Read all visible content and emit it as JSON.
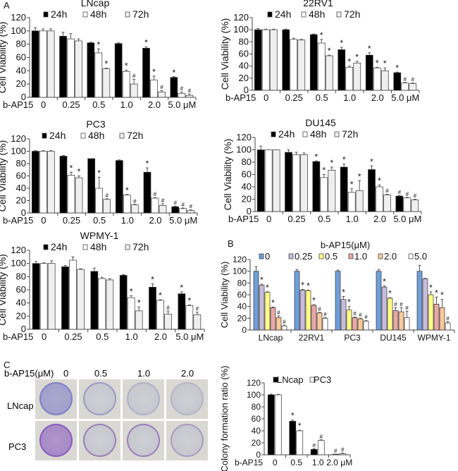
{
  "panel_labels": {
    "a": "A",
    "b": "B",
    "c": "C"
  },
  "colony_photos": {
    "header": "b-AP15(μM)",
    "columns": [
      "0",
      "0.5",
      "1.0",
      "2.0"
    ],
    "rows": [
      "LNcap",
      "PC3"
    ],
    "row_colors": {
      "LNcap": [
        "#7f80c8",
        "#9a9ac4",
        "#b0b0c8",
        "#b4b4c6"
      ],
      "PC3": [
        "#8a5cc0",
        "#9a80b8",
        "#9c7fbc",
        "#a89cc2"
      ]
    }
  },
  "chart_data": [
    {
      "type": "bar",
      "title": "LNcap",
      "xlabel": "b-AP15",
      "ylabel": "Cell Viability (%)",
      "ylim": [
        0,
        120
      ],
      "yticks": [
        "0",
        "20",
        "40",
        "60",
        "80",
        "100",
        "120"
      ],
      "categories": [
        "0",
        "0.25",
        "0.5",
        "1.0",
        "2.0",
        "5.0 μM"
      ],
      "series": [
        {
          "name": "24h",
          "color": "#000000",
          "values": [
            100,
            92,
            82,
            81,
            74,
            30
          ],
          "err": [
            5,
            6,
            1,
            1,
            2,
            1
          ],
          "marks": [
            "",
            "",
            "",
            "",
            "*",
            "*"
          ]
        },
        {
          "name": "48h",
          "color": "#ffffff",
          "values": [
            100,
            88,
            67,
            39,
            26,
            6
          ],
          "err": [
            3,
            8,
            6,
            2,
            6,
            2
          ],
          "marks": [
            "",
            "",
            "*",
            "*",
            "*",
            "#"
          ]
        },
        {
          "name": "72h",
          "color": "#efefef",
          "values": [
            100,
            85,
            43,
            20,
            8,
            3
          ],
          "err": [
            3,
            3,
            1,
            7,
            2,
            2
          ],
          "marks": [
            "",
            "",
            "*",
            "#",
            "#",
            "#"
          ]
        }
      ]
    },
    {
      "type": "bar",
      "title": "22RV1",
      "xlabel": "b-AP15",
      "ylabel": "Cell Viability (%)",
      "ylim": [
        0,
        120
      ],
      "yticks": [
        "0",
        "20",
        "40",
        "60",
        "80",
        "100",
        "120"
      ],
      "categories": [
        "0",
        "0.25",
        "0.5",
        "1.0",
        "2.0",
        "5.0 μM"
      ],
      "series": [
        {
          "name": "24h",
          "color": "#000000",
          "values": [
            100,
            100,
            92,
            67,
            58,
            29
          ],
          "err": [
            2,
            1,
            1,
            4,
            4,
            1
          ],
          "marks": [
            "",
            "",
            "",
            "*",
            "*",
            "*"
          ]
        },
        {
          "name": "48h",
          "color": "#ffffff",
          "values": [
            100,
            84,
            78,
            38,
            37,
            12
          ],
          "err": [
            1,
            2,
            6,
            2,
            1,
            1
          ],
          "marks": [
            "",
            "",
            "*",
            "*",
            "*",
            "#"
          ]
        },
        {
          "name": "72h",
          "color": "#efefef",
          "values": [
            100,
            83,
            57,
            45,
            32,
            11
          ],
          "err": [
            1,
            1,
            1,
            3,
            5,
            1
          ],
          "marks": [
            "",
            "",
            "*",
            "*",
            "*",
            "#"
          ]
        }
      ]
    },
    {
      "type": "bar",
      "title": "PC3",
      "xlabel": "b-AP15",
      "ylabel": "Cell Viability (%)",
      "ylim": [
        0,
        120
      ],
      "yticks": [
        "0",
        "20",
        "40",
        "60",
        "80",
        "100",
        "120"
      ],
      "categories": [
        "0",
        "0.25",
        "0.5",
        "1.0",
        "2.0",
        "5.0 μM"
      ],
      "series": [
        {
          "name": "24h",
          "color": "#000000",
          "values": [
            100,
            92,
            88,
            85,
            66,
            10
          ],
          "err": [
            1,
            1,
            0,
            1,
            7,
            1
          ],
          "marks": [
            "",
            "",
            "",
            "",
            "*",
            "#"
          ]
        },
        {
          "name": "48h",
          "color": "#ffffff",
          "values": [
            100,
            61,
            40,
            29,
            24,
            7
          ],
          "err": [
            1,
            5,
            18,
            1,
            1,
            1
          ],
          "marks": [
            "",
            "*",
            "*",
            "*",
            "#",
            "#"
          ]
        },
        {
          "name": "72h",
          "color": "#efefef",
          "values": [
            100,
            57,
            22,
            13,
            12,
            4
          ],
          "err": [
            1,
            3,
            1,
            1,
            3,
            1
          ],
          "marks": [
            "",
            "*",
            "#",
            "#",
            "#",
            "#"
          ]
        }
      ]
    },
    {
      "type": "bar",
      "title": "DU145",
      "xlabel": "b-AP15",
      "ylabel": "Cell Viability (%)",
      "ylim": [
        0,
        120
      ],
      "yticks": [
        "0",
        "20",
        "40",
        "60",
        "80",
        "100",
        "120"
      ],
      "categories": [
        "0",
        "0.25",
        "0.5",
        "1.0",
        "2.0",
        "5.0 μM"
      ],
      "series": [
        {
          "name": "24h",
          "color": "#000000",
          "values": [
            100,
            96,
            81,
            72,
            68,
            25
          ],
          "err": [
            6,
            4,
            1,
            5,
            6,
            1
          ],
          "marks": [
            "",
            "",
            "*",
            "*",
            "*",
            "#"
          ]
        },
        {
          "name": "48h",
          "color": "#ffffff",
          "values": [
            100,
            92,
            55,
            31,
            40,
            22
          ],
          "err": [
            0,
            4,
            5,
            6,
            3,
            1
          ],
          "marks": [
            "",
            "",
            "*",
            "*",
            "*",
            "#"
          ]
        },
        {
          "name": "72h",
          "color": "#efefef",
          "values": [
            100,
            92,
            67,
            34,
            27,
            19
          ],
          "err": [
            0,
            3,
            5,
            16,
            1,
            1
          ],
          "marks": [
            "",
            "",
            "*",
            "*",
            "#",
            "#"
          ]
        }
      ]
    },
    {
      "type": "bar",
      "title": "WPMY-1",
      "xlabel": "b-AP15",
      "ylabel": "Cell Viability (%)",
      "ylim": [
        0,
        120
      ],
      "yticks": [
        "0",
        "20",
        "40",
        "60",
        "80",
        "100",
        "120"
      ],
      "categories": [
        "0",
        "0.25",
        "0.5",
        "1.0",
        "2.0",
        "5.0 μM"
      ],
      "series": [
        {
          "name": "24h",
          "color": "#000000",
          "values": [
            100,
            95,
            88,
            82,
            64,
            54
          ],
          "err": [
            3,
            2,
            5,
            1,
            5,
            3
          ],
          "marks": [
            "",
            "",
            "",
            "",
            "*",
            "*"
          ]
        },
        {
          "name": "48h",
          "color": "#ffffff",
          "values": [
            100,
            105,
            77,
            48,
            44,
            36
          ],
          "err": [
            1,
            5,
            2,
            3,
            1,
            1
          ],
          "marks": [
            "",
            "",
            "",
            "*",
            "*",
            "*"
          ]
        },
        {
          "name": "72h",
          "color": "#efefef",
          "values": [
            100,
            91,
            75,
            28,
            23,
            22
          ],
          "err": [
            4,
            1,
            2,
            6,
            5,
            4
          ],
          "marks": [
            "",
            "",
            "",
            "*",
            "#",
            "#"
          ]
        }
      ]
    },
    {
      "type": "bar",
      "title": "b-AP15(μM)",
      "xlabel": "",
      "ylabel": "Cell Viability (%)",
      "ylim": [
        0,
        120
      ],
      "yticks": [
        "0",
        "20",
        "40",
        "60",
        "80",
        "100",
        "120"
      ],
      "categories": [
        "LNcap",
        "22RV1",
        "PC3",
        "DU145",
        "WPMY-1"
      ],
      "series": [
        {
          "name": "0",
          "color": "#6f9fd8",
          "values": [
            100,
            100,
            100,
            100,
            100
          ],
          "err": [
            8,
            3,
            2,
            3,
            10
          ],
          "marks": [
            "",
            "",
            "",
            "",
            ""
          ]
        },
        {
          "name": "0.25",
          "color": "#c8bcdc",
          "values": [
            76,
            68,
            52,
            73,
            87
          ],
          "err": [
            2,
            1,
            5,
            2,
            1
          ],
          "marks": [
            "*",
            "*",
            "*",
            "*",
            ""
          ]
        },
        {
          "name": "0.5",
          "color": "#ffff88",
          "values": [
            64,
            67,
            34,
            54,
            60
          ],
          "err": [
            1,
            1,
            6,
            1,
            5
          ],
          "marks": [
            "*",
            "*",
            "*",
            "*",
            "*"
          ]
        },
        {
          "name": "1.0",
          "color": "#e8a8a8",
          "values": [
            38,
            42,
            21,
            33,
            44
          ],
          "err": [
            1,
            1,
            1,
            5,
            12
          ],
          "marks": [
            "*",
            "*",
            "#",
            "#",
            "*"
          ]
        },
        {
          "name": "2.0",
          "color": "#f9c99c",
          "values": [
            21,
            29,
            19,
            31,
            38
          ],
          "err": [
            3,
            1,
            1,
            7,
            14
          ],
          "marks": [
            "#",
            "#",
            "#",
            "#",
            "*"
          ]
        },
        {
          "name": "5.0",
          "color": "#ffffff",
          "values": [
            7,
            20,
            15,
            21,
            12
          ],
          "err": [
            1,
            1,
            1,
            11,
            2
          ],
          "marks": [
            "#",
            "#",
            "#",
            "#",
            "#"
          ]
        }
      ]
    },
    {
      "type": "bar",
      "title": "",
      "xlabel": "b-AP15",
      "ylabel": "Colony formation ratio (%)",
      "ylim": [
        0,
        120
      ],
      "yticks": [
        "0",
        "20",
        "40",
        "60",
        "80",
        "100",
        "120"
      ],
      "categories": [
        "0",
        "0.5",
        "1.0",
        "2.0 μM"
      ],
      "series": [
        {
          "name": "LNcap",
          "color": "#000000",
          "values": [
            100,
            56,
            9,
            1
          ],
          "err": [
            1,
            2,
            1,
            0
          ],
          "marks": [
            "",
            "*",
            "#",
            "#"
          ]
        },
        {
          "name": "PC3",
          "color": "#ffffff",
          "values": [
            100,
            40,
            24,
            2
          ],
          "err": [
            1,
            1,
            1,
            1
          ],
          "marks": [
            "",
            "*",
            "#",
            "#"
          ]
        }
      ]
    }
  ]
}
